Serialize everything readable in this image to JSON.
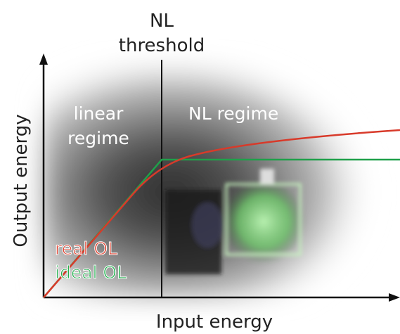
{
  "threshold_label": [
    "NL",
    "threshold"
  ],
  "linear_regime_label": [
    "linear",
    "regime"
  ],
  "nl_regime_label": "NL regime",
  "y_axis_label": "Output energy",
  "x_axis_label": "Input energy",
  "legend": {
    "real": "real OL",
    "ideal": "ideal OL"
  }
}
